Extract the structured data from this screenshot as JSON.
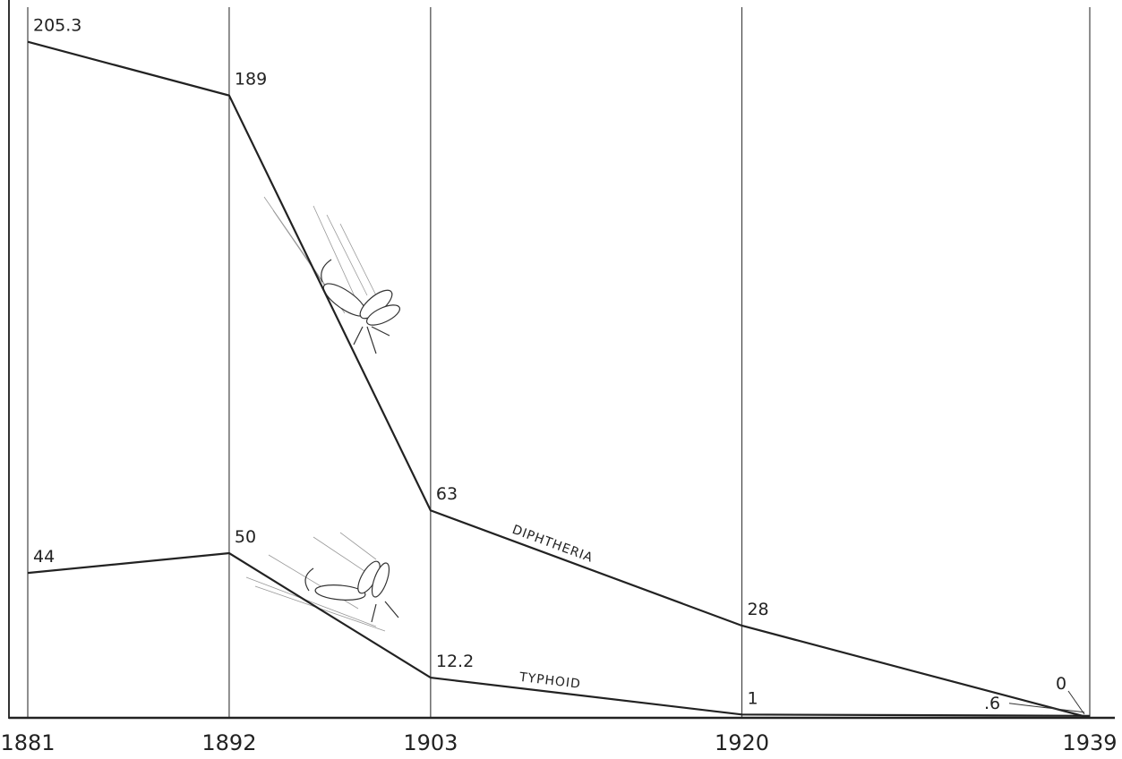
{
  "chart_data": {
    "type": "line",
    "x": [
      1881,
      1892,
      1903,
      1920,
      1939
    ],
    "series": [
      {
        "name": "DIPHTHERIA",
        "color": "#222222",
        "values": [
          205.3,
          189,
          63,
          28,
          0
        ]
      },
      {
        "name": "TYPHOID",
        "color": "#222222",
        "values": [
          44,
          50,
          12.2,
          1,
          0.6
        ],
        "value_labels": [
          "44",
          "50",
          "12.2",
          "1",
          ".6"
        ]
      }
    ],
    "xlim": [
      1881,
      1939
    ],
    "ylim": [
      0,
      218
    ],
    "xticks": [
      1881,
      1892,
      1903,
      1920,
      1939
    ],
    "grid": true
  }
}
